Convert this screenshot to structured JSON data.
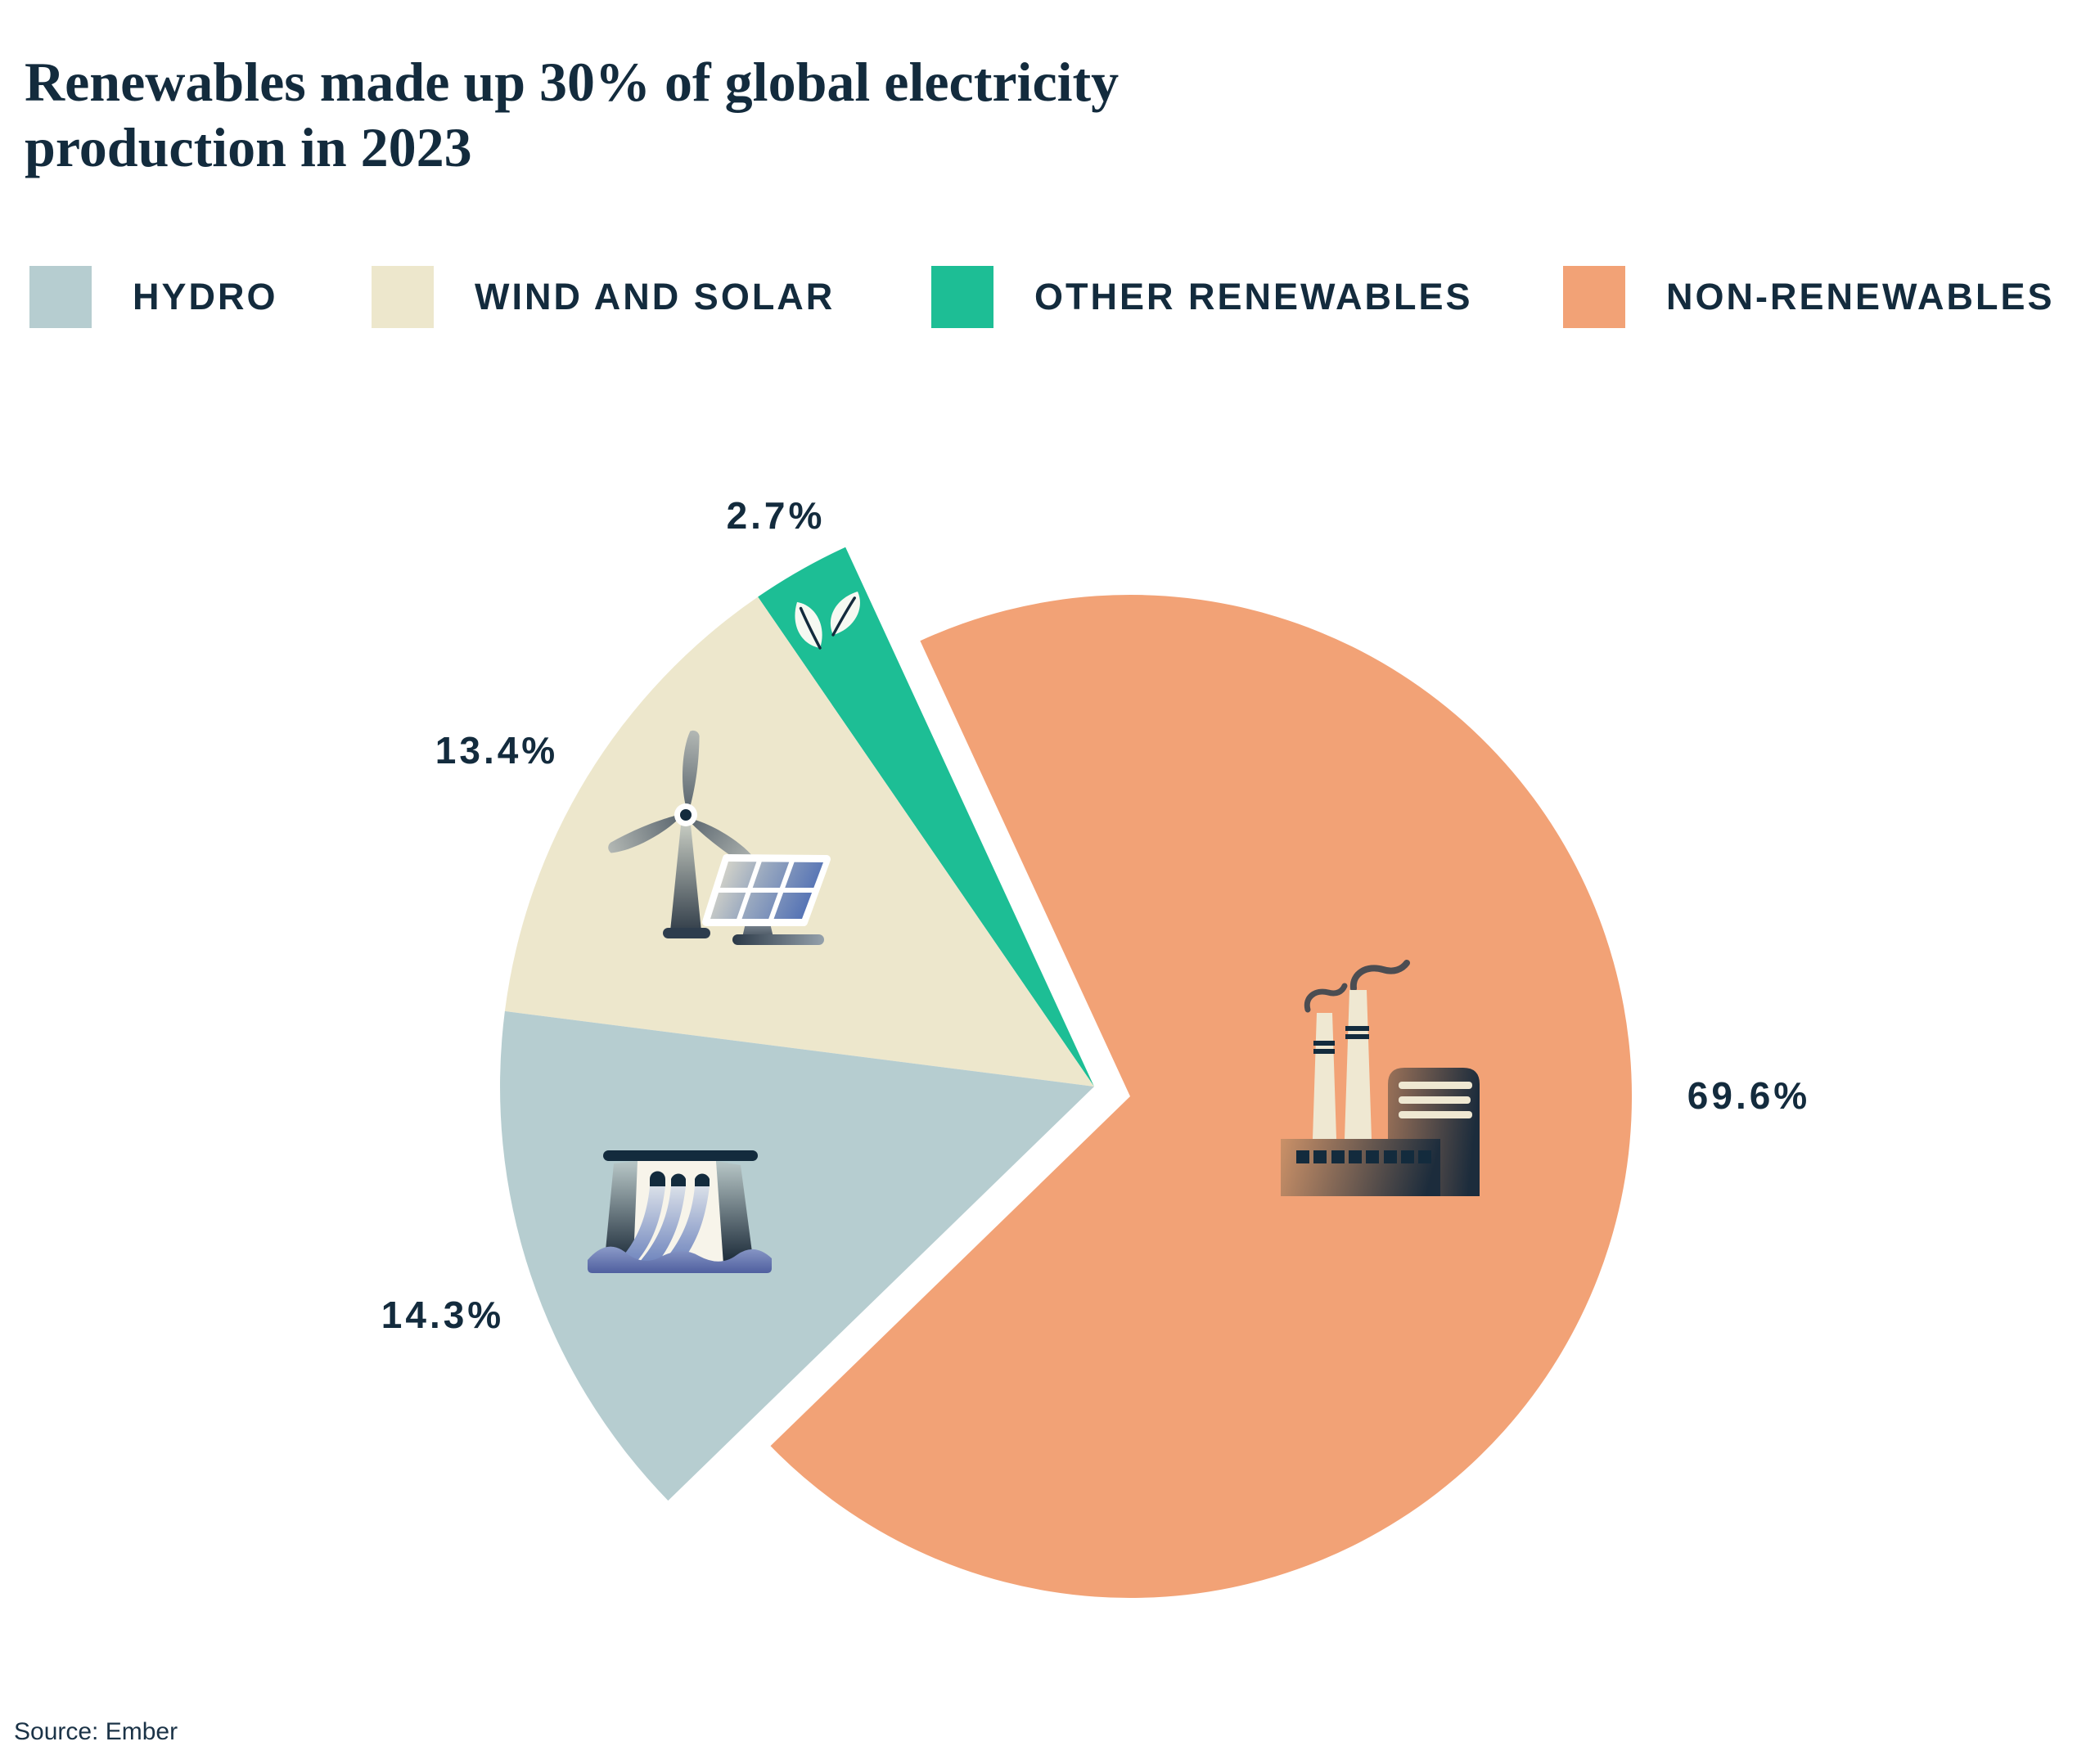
{
  "title": "Renewables made up 30% of global electricity production in 2023",
  "source": "Source: Ember",
  "colors": {
    "text_navy": "#132B3D",
    "hydro": "#B6CDD0",
    "wind_and_solar": "#EDE7CC",
    "other_renewables": "#1DBE95",
    "non_renewables": "#F2A276",
    "background": "#FFFFFF"
  },
  "legend": [
    {
      "label": "HYDRO",
      "color": "#B6CDD0"
    },
    {
      "label": "WIND AND SOLAR",
      "color": "#EDE7CC"
    },
    {
      "label": "OTHER RENEWABLES",
      "color": "#1DBE95"
    },
    {
      "label": "NON-RENEWABLES",
      "color": "#F2A276"
    }
  ],
  "chart_data": {
    "type": "pie",
    "title": "Renewables made up 30% of global electricity production in 2023",
    "start_angle_deg": 114.75,
    "direction": "ccw",
    "legend_position": "top",
    "slices": [
      {
        "name": "Other renewables",
        "value": 2.7,
        "label": "2.7%",
        "color": "#1DBE95",
        "exploded": true,
        "icon": "leaf"
      },
      {
        "name": "Wind and solar",
        "value": 13.4,
        "label": "13.4%",
        "color": "#EDE7CC",
        "exploded": true,
        "icon": "wind-turbine-and-solar-panel"
      },
      {
        "name": "Hydro",
        "value": 14.3,
        "label": "14.3%",
        "color": "#B6CDD0",
        "exploded": true,
        "icon": "hydro-dam"
      },
      {
        "name": "Non-renewables",
        "value": 69.6,
        "label": "69.6%",
        "color": "#F2A276",
        "exploded": false,
        "icon": "factory"
      }
    ]
  }
}
